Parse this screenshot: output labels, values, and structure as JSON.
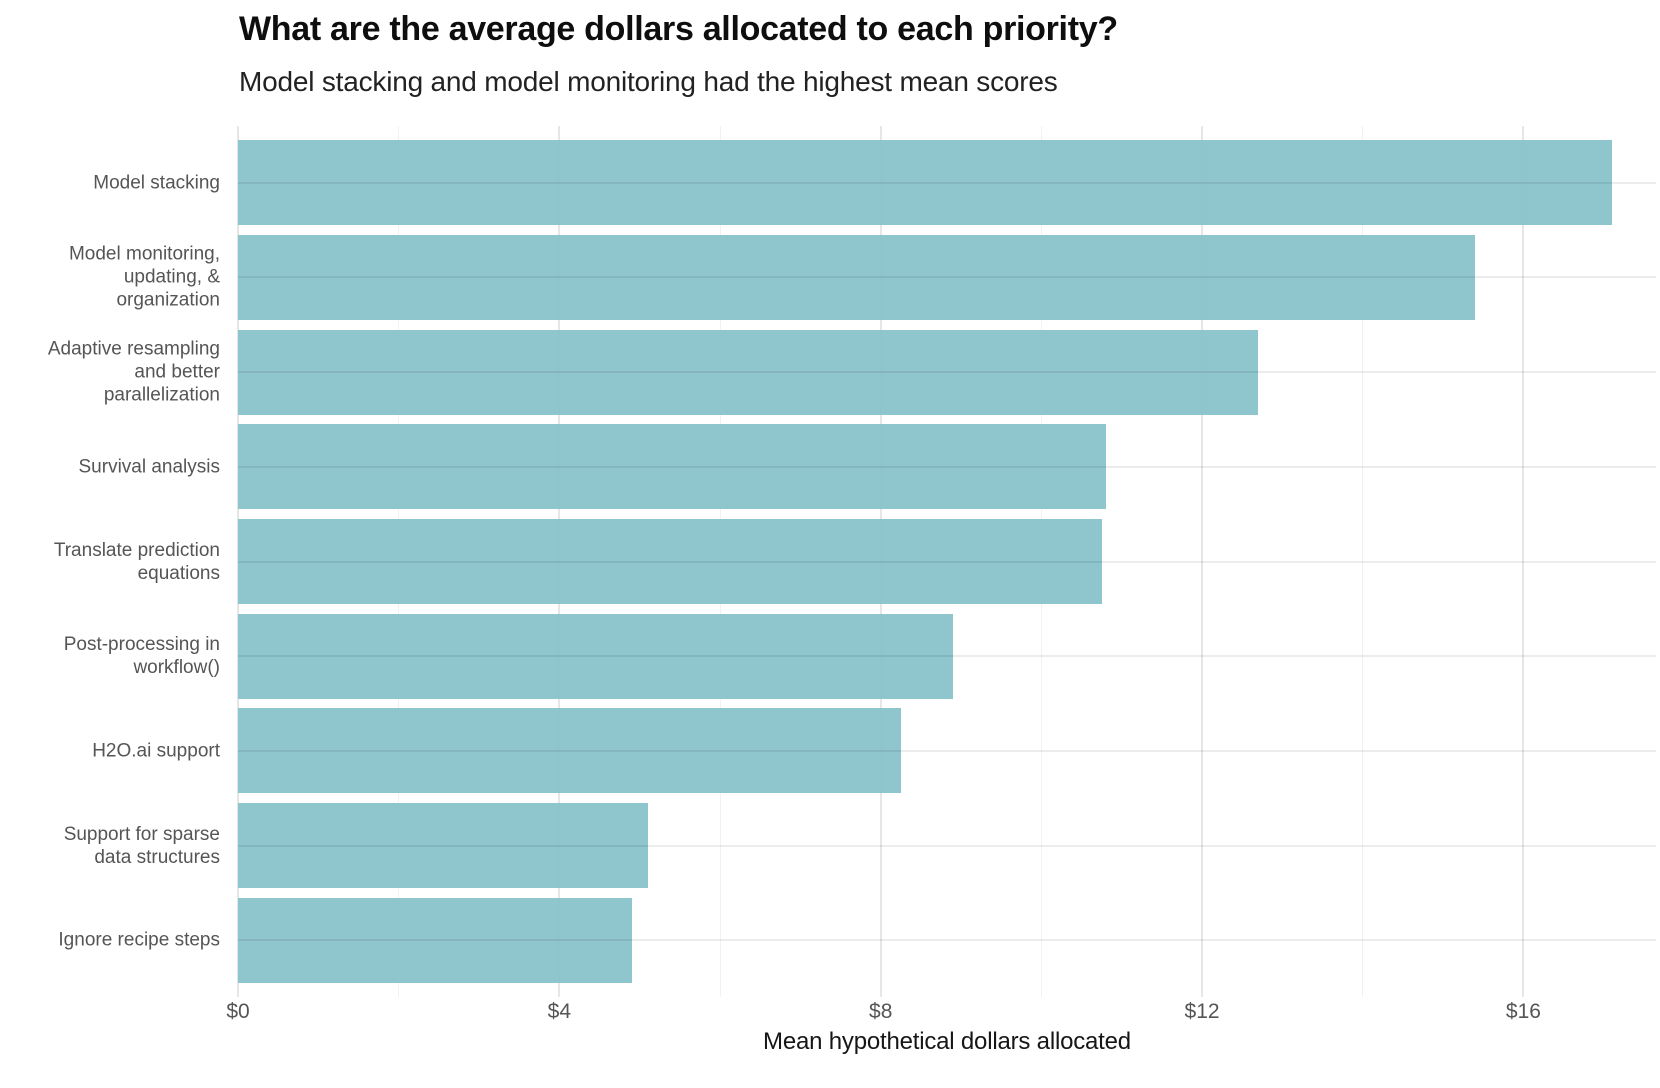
{
  "chart_data": {
    "type": "bar",
    "orientation": "horizontal",
    "title": "What are the average dollars allocated to each priority?",
    "subtitle": "Model stacking and model monitoring had the highest mean scores",
    "xlabel": "Mean hypothetical dollars allocated",
    "categories": [
      "Model stacking",
      "Model monitoring,\nupdating, &\norganization",
      "Adaptive resampling\nand better\nparallelization",
      "Survival analysis",
      "Translate prediction\nequations",
      "Post-processing in\nworkflow()",
      "H2O.ai support",
      "Support for sparse\ndata structures",
      "Ignore recipe steps"
    ],
    "values": [
      17.1,
      15.4,
      12.7,
      10.8,
      10.75,
      8.9,
      8.25,
      5.1,
      4.9
    ],
    "x_ticks": [
      {
        "value": 0,
        "label": "$0"
      },
      {
        "value": 4,
        "label": "$4"
      },
      {
        "value": 8,
        "label": "$8"
      },
      {
        "value": 12,
        "label": "$12"
      },
      {
        "value": 16,
        "label": "$16"
      }
    ],
    "x_minor_gridlines": [
      2,
      6,
      10,
      14
    ],
    "xlim": [
      0,
      17.65
    ],
    "grid": "on",
    "legend": "none",
    "colors": {
      "bar": "#8AC3CB",
      "grid_major": "#E6E6E6",
      "grid_minor": "#F1F1F1",
      "axis_text": "#555555",
      "title_text": "#0E0E0E",
      "subtitle_text": "#222222"
    }
  }
}
